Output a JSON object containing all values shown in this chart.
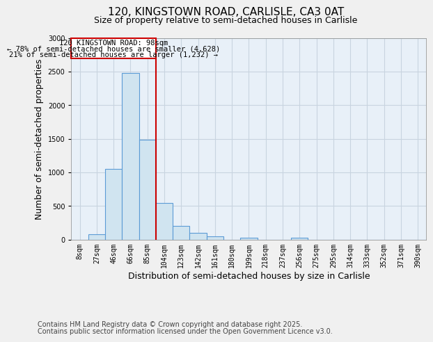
{
  "title_line1": "120, KINGSTOWN ROAD, CARLISLE, CA3 0AT",
  "title_line2": "Size of property relative to semi-detached houses in Carlisle",
  "xlabel": "Distribution of semi-detached houses by size in Carlisle",
  "ylabel": "Number of semi-detached properties",
  "categories": [
    "8sqm",
    "27sqm",
    "46sqm",
    "66sqm",
    "85sqm",
    "104sqm",
    "123sqm",
    "142sqm",
    "161sqm",
    "180sqm",
    "199sqm",
    "218sqm",
    "237sqm",
    "256sqm",
    "275sqm",
    "295sqm",
    "314sqm",
    "333sqm",
    "352sqm",
    "371sqm",
    "390sqm"
  ],
  "values": [
    0,
    75,
    1050,
    2480,
    1480,
    540,
    200,
    100,
    50,
    0,
    30,
    0,
    0,
    30,
    0,
    0,
    0,
    0,
    0,
    0,
    0
  ],
  "bar_color": "#d0e4f0",
  "bar_edge_color": "#5b9bd5",
  "property_index": 4,
  "property_label": "120 KINGSTOWN ROAD: 98sqm",
  "annotation_line1": "← 78% of semi-detached houses are smaller (4,628)",
  "annotation_line2": "21% of semi-detached houses are larger (1,232) →",
  "vline_color": "#cc0000",
  "box_edge_color": "#cc0000",
  "ylim": [
    0,
    3000
  ],
  "yticks": [
    0,
    500,
    1000,
    1500,
    2000,
    2500,
    3000
  ],
  "footer_line1": "Contains HM Land Registry data © Crown copyright and database right 2025.",
  "footer_line2": "Contains public sector information licensed under the Open Government Licence v3.0.",
  "background_color": "#f0f0f0",
  "plot_bg_color": "#e8f0f8",
  "grid_color": "#c8d4e0",
  "title_fontsize": 11,
  "subtitle_fontsize": 9,
  "axis_label_fontsize": 9,
  "tick_fontsize": 7,
  "footer_fontsize": 7,
  "annotation_fontsize": 7.5
}
